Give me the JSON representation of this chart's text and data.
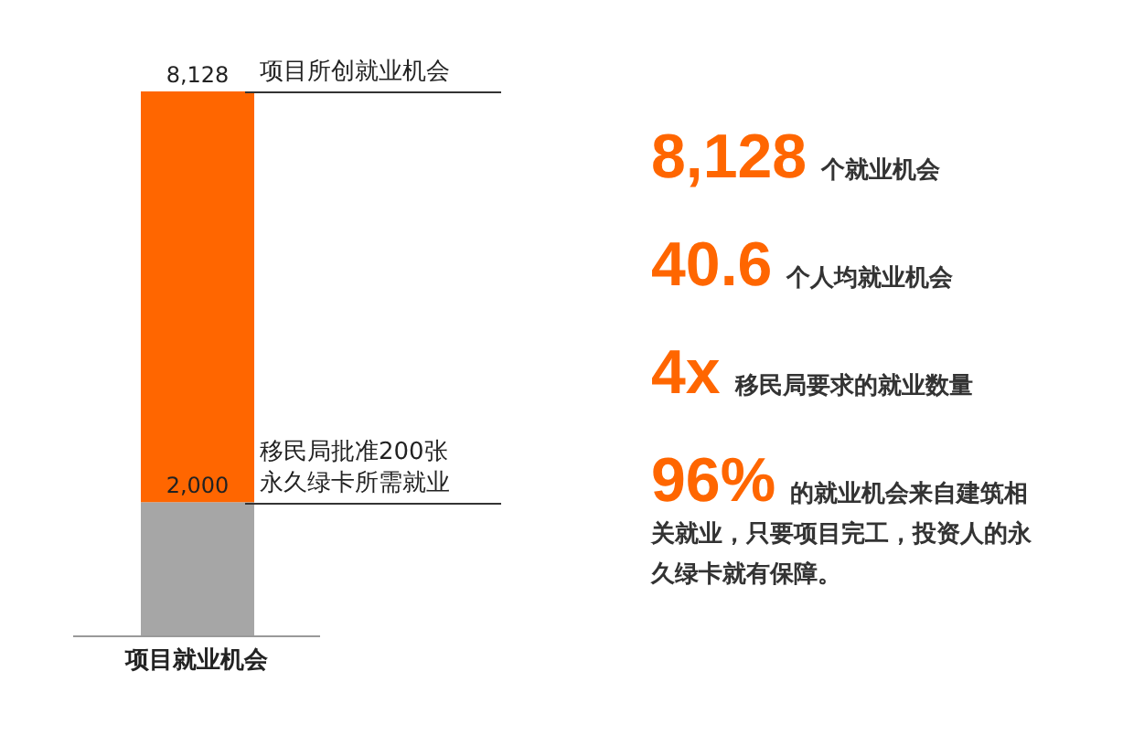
{
  "chart_data": {
    "type": "bar",
    "stacked": true,
    "categories": [
      "项目就业机会"
    ],
    "series": [
      {
        "color": "#a6a6a6",
        "values": [
          2000
        ],
        "value_labels": [
          "2,000"
        ]
      },
      {
        "color": "#ff6600",
        "values": [
          6128
        ]
      }
    ],
    "totals": [
      "8,128"
    ],
    "tick_labels": "x",
    "annotations": [
      "项目所创就业机会",
      "移民局批准200张永久绿卡所需就业",
      "8,128 个就业机会",
      "40.6 个人均就业机会",
      "4x 移民局要求的就业数量",
      "96% 的就业机会来自建筑相关就业，只要项目完工，投资人的永久绿卡就有保障。"
    ]
  }
}
